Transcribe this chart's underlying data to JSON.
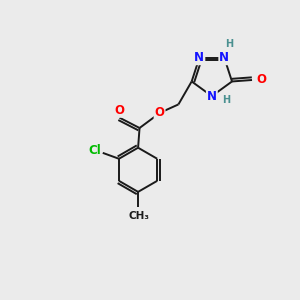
{
  "background_color": "#ebebeb",
  "bond_color": "#1a1a1a",
  "atom_colors": {
    "N": "#1414ff",
    "O": "#ff0000",
    "Cl": "#00bb00",
    "C": "#1a1a1a",
    "H": "#4a9090"
  },
  "font_size_atoms": 8.5,
  "font_size_H": 7.0,
  "figsize": [
    3.0,
    3.0
  ],
  "dpi": 100,
  "lw": 1.4
}
